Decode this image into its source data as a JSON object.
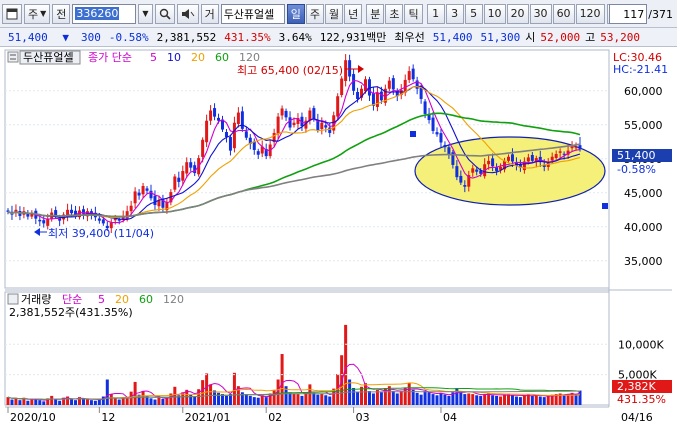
{
  "toolbar": {
    "market_select": "주",
    "type_select": "전",
    "code": "336260",
    "chart_mode_label": "거",
    "stock_name": "두산퓨얼셀",
    "periods": [
      "일",
      "주",
      "월",
      "년"
    ],
    "active_period": "일",
    "intervals": [
      "분",
      "초",
      "틱"
    ],
    "intraday": [
      "1",
      "3",
      "5",
      "10",
      "20",
      "30",
      "60",
      "120"
    ],
    "counter": "117",
    "counter_total": "/371"
  },
  "quote": {
    "price": "51,400",
    "arrow": "▼",
    "change": "300",
    "change_pct": "-0.58%",
    "volume": "2,381,552",
    "volume_pct": "431.35%",
    "turnover_pct": "3.64%",
    "amount": "122,931백만",
    "order_label": "최우선",
    "ask": "51,400",
    "bid": "51,300",
    "open_label": "시",
    "open": "52,000",
    "high_label": "고",
    "high": "53,200"
  },
  "price_panel": {
    "title": "두산퓨얼셀",
    "legend_label": "종가 단순",
    "ma": [
      {
        "p": "5",
        "color": "#d000d0"
      },
      {
        "p": "10",
        "color": "#1010d0"
      },
      {
        "p": "20",
        "color": "#f0a000"
      },
      {
        "p": "60",
        "color": "#10a010"
      },
      {
        "p": "120",
        "color": "#808080"
      }
    ],
    "lc": "LC:30.46",
    "hc": "HC:-21.41",
    "yticks": [
      "60,000",
      "55,000",
      "50,000",
      "45,000",
      "40,000",
      "35,000"
    ],
    "last_price": "51,400",
    "last_pct": "-0.58%",
    "high_note": "최고 65,400 (02/15)",
    "low_note": "최저 39,400 (11/04)"
  },
  "volume_panel": {
    "title": "거래량",
    "legend_label": "단순",
    "ma": [
      {
        "p": "5",
        "color": "#d000d0"
      },
      {
        "p": "20",
        "color": "#f0a000"
      },
      {
        "p": "60",
        "color": "#10a010"
      },
      {
        "p": "120",
        "color": "#808080"
      }
    ],
    "current": "2,381,552주(431.35%)",
    "yticks": [
      "10,000K",
      "5,000K"
    ],
    "last_vol": "2,382K",
    "last_pct": "431.35%"
  },
  "xaxis": [
    "2020/10",
    "12",
    "2021/01",
    "02",
    "03",
    "04",
    "04/16"
  ],
  "colors": {
    "up": "#e01818",
    "down": "#1030e0",
    "accent": "#3d5fb6",
    "ellipse_fill": "#f4f07a",
    "ellipse_stroke": "#1020b0"
  },
  "chart_data": {
    "type": "candlestick",
    "note": "Daily price chart of 두산퓨얼셀 (Oct 2020 – Apr 16 2021)",
    "high": {
      "value": 65400,
      "date": "02/15"
    },
    "low": {
      "value": 39400,
      "date": "11/04"
    },
    "last": {
      "close": 51400,
      "change": -300,
      "change_pct": -0.58,
      "open": 52000,
      "high": 53200,
      "volume": 2381552
    },
    "ylim": [
      31000,
      66000
    ],
    "closes": [
      42200,
      41800,
      42500,
      41600,
      42300,
      41500,
      42000,
      41200,
      40800,
      40500,
      41200,
      42100,
      41500,
      40900,
      41800,
      42500,
      42000,
      41600,
      42400,
      41900,
      42300,
      41700,
      41400,
      40900,
      40500,
      39800,
      40600,
      41300,
      40900,
      41500,
      42300,
      43100,
      45200,
      44600,
      46000,
      45300,
      44200,
      43200,
      43900,
      42800,
      43600,
      45100,
      47400,
      46600,
      48200,
      49500,
      48700,
      47900,
      50100,
      52800,
      55600,
      57100,
      56200,
      55600,
      54300,
      53200,
      51200,
      55300,
      56800,
      54400,
      53100,
      52200,
      51300,
      50600,
      51800,
      50400,
      52100,
      53800,
      56200,
      57400,
      56100,
      54600,
      55300,
      56000,
      54800,
      55600,
      57100,
      55900,
      54200,
      55300,
      54600,
      53800,
      56400,
      59200,
      61800,
      64500,
      62100,
      60000,
      58800,
      60300,
      61700,
      59300,
      57800,
      59700,
      58600,
      60300,
      61500,
      60200,
      59200,
      60100,
      61600,
      62900,
      61700,
      60300,
      58800,
      56600,
      55700,
      54100,
      53600,
      52400,
      51700,
      50600,
      49100,
      47300,
      46500,
      45900,
      47600,
      48600,
      48100,
      47800,
      49200,
      49700,
      48900,
      48200,
      48800,
      49700,
      50300,
      49600,
      49000,
      48700,
      49600,
      50200,
      49700,
      50100,
      49500,
      48800,
      49400,
      50300,
      50700,
      51100,
      50600,
      51200,
      51800,
      51700,
      51400
    ],
    "volumes_k": [
      1300,
      900,
      1100,
      800,
      1200,
      700,
      900,
      1000,
      800,
      600,
      1100,
      1500,
      900,
      700,
      1200,
      1400,
      900,
      800,
      1300,
      1000,
      900,
      800,
      700,
      900,
      1400,
      4200,
      1800,
      1200,
      900,
      1100,
      1300,
      2200,
      3800,
      1700,
      2300,
      1500,
      1100,
      900,
      1300,
      1000,
      1200,
      1900,
      3000,
      1600,
      2100,
      2500,
      1700,
      1400,
      2600,
      4100,
      5200,
      3400,
      2400,
      2000,
      1800,
      1500,
      1800,
      5300,
      3100,
      2100,
      1800,
      1500,
      1300,
      1200,
      1600,
      1300,
      1900,
      2500,
      4200,
      8400,
      3100,
      2100,
      1900,
      1800,
      1500,
      2000,
      3400,
      2000,
      1700,
      1900,
      1600,
      1400,
      2700,
      5100,
      8200,
      13200,
      4200,
      2800,
      2200,
      3000,
      3600,
      2300,
      1900,
      2500,
      2100,
      2800,
      3100,
      2300,
      1900,
      2300,
      2900,
      3600,
      2500,
      2000,
      1700,
      2300,
      2100,
      1800,
      1600,
      1900,
      1700,
      1500,
      2100,
      2800,
      2300,
      1800,
      1900,
      1800,
      1600,
      1500,
      1800,
      2000,
      1600,
      1500,
      1400,
      1700,
      1900,
      1600,
      1400,
      1300,
      1600,
      1800,
      1500,
      1600,
      1400,
      1300,
      1500,
      1700,
      1800,
      1900,
      1600,
      1800,
      2000,
      1700,
      2382
    ],
    "series": [
      {
        "name": "5"
      },
      {
        "name": "10"
      },
      {
        "name": "20"
      },
      {
        "name": "60"
      },
      {
        "name": "120"
      }
    ]
  }
}
